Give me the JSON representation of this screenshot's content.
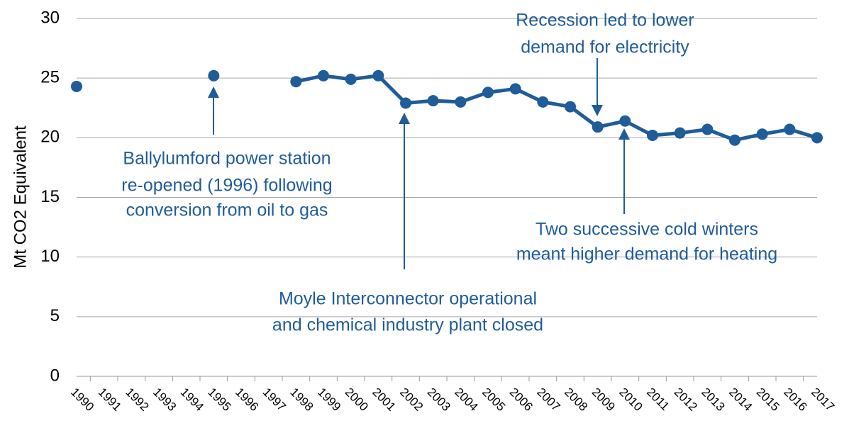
{
  "chart_data": {
    "type": "line",
    "y_label": "Mt CO2 Equivalent",
    "categories": [
      "1990",
      "1991",
      "1992",
      "1993",
      "1994",
      "1995",
      "1996",
      "1997",
      "1998",
      "1999",
      "2000",
      "2001",
      "2002",
      "2003",
      "2004",
      "2005",
      "2006",
      "2007",
      "2008",
      "2009",
      "2010",
      "2011",
      "2012",
      "2013",
      "2014",
      "2015",
      "2016",
      "2017"
    ],
    "series": [
      {
        "color": "#1f5c99",
        "values": [
          24.3,
          null,
          null,
          null,
          null,
          25.2,
          null,
          null,
          24.7,
          25.2,
          24.9,
          25.2,
          22.9,
          23.1,
          23.0,
          23.8,
          24.1,
          23.0,
          22.6,
          20.9,
          21.4,
          20.2,
          20.4,
          20.7,
          19.8,
          20.3,
          20.7,
          20.0
        ]
      }
    ],
    "ylim": [
      0,
      30
    ],
    "yticks": [
      0,
      5,
      10,
      15,
      20,
      25,
      30
    ],
    "grid": true,
    "annotations": [
      {
        "lines": [
          "Ballylumford power station",
          "re-opened (1996) following",
          "conversion from oil to gas"
        ]
      },
      {
        "lines": [
          "Moyle Interconnector operational",
          "and chemical industry plant closed"
        ]
      },
      {
        "lines": [
          "Recession led to lower",
          "demand for electricity"
        ]
      },
      {
        "lines": [
          "Two successive cold winters",
          "meant higher demand for heating"
        ]
      }
    ]
  }
}
